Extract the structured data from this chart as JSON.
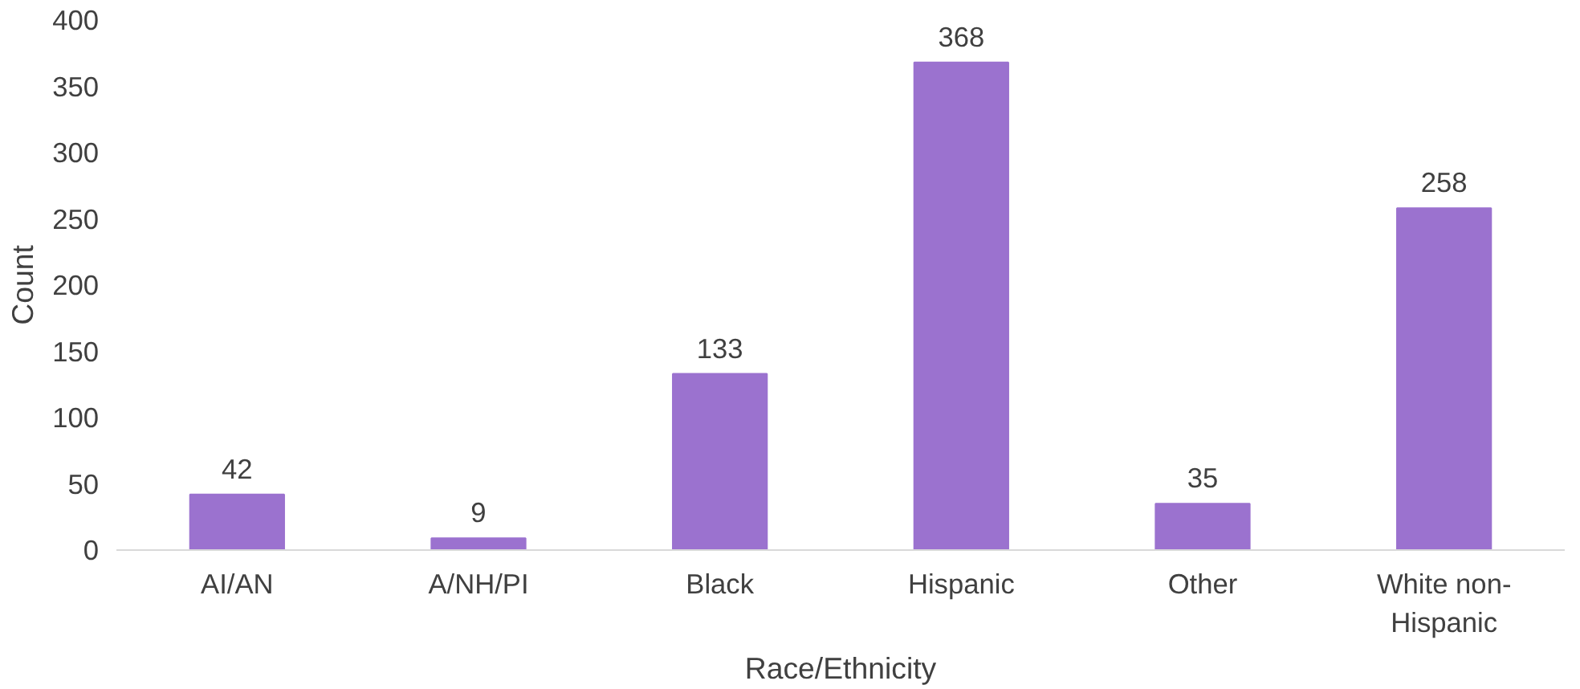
{
  "chart_data": {
    "type": "bar",
    "xlabel": "Race/Ethnicity",
    "ylabel": "Count",
    "categories": [
      "AI/AN",
      "A/NH/PI",
      "Black",
      "Hispanic",
      "Other",
      "White non-Hispanic"
    ],
    "values": [
      42,
      9,
      133,
      368,
      35,
      258
    ],
    "color": "#9b72cf",
    "ylim": [
      0,
      400
    ],
    "yticks": [
      0,
      50,
      100,
      150,
      200,
      250,
      300,
      350,
      400
    ],
    "grid": false,
    "data_labels": true
  }
}
